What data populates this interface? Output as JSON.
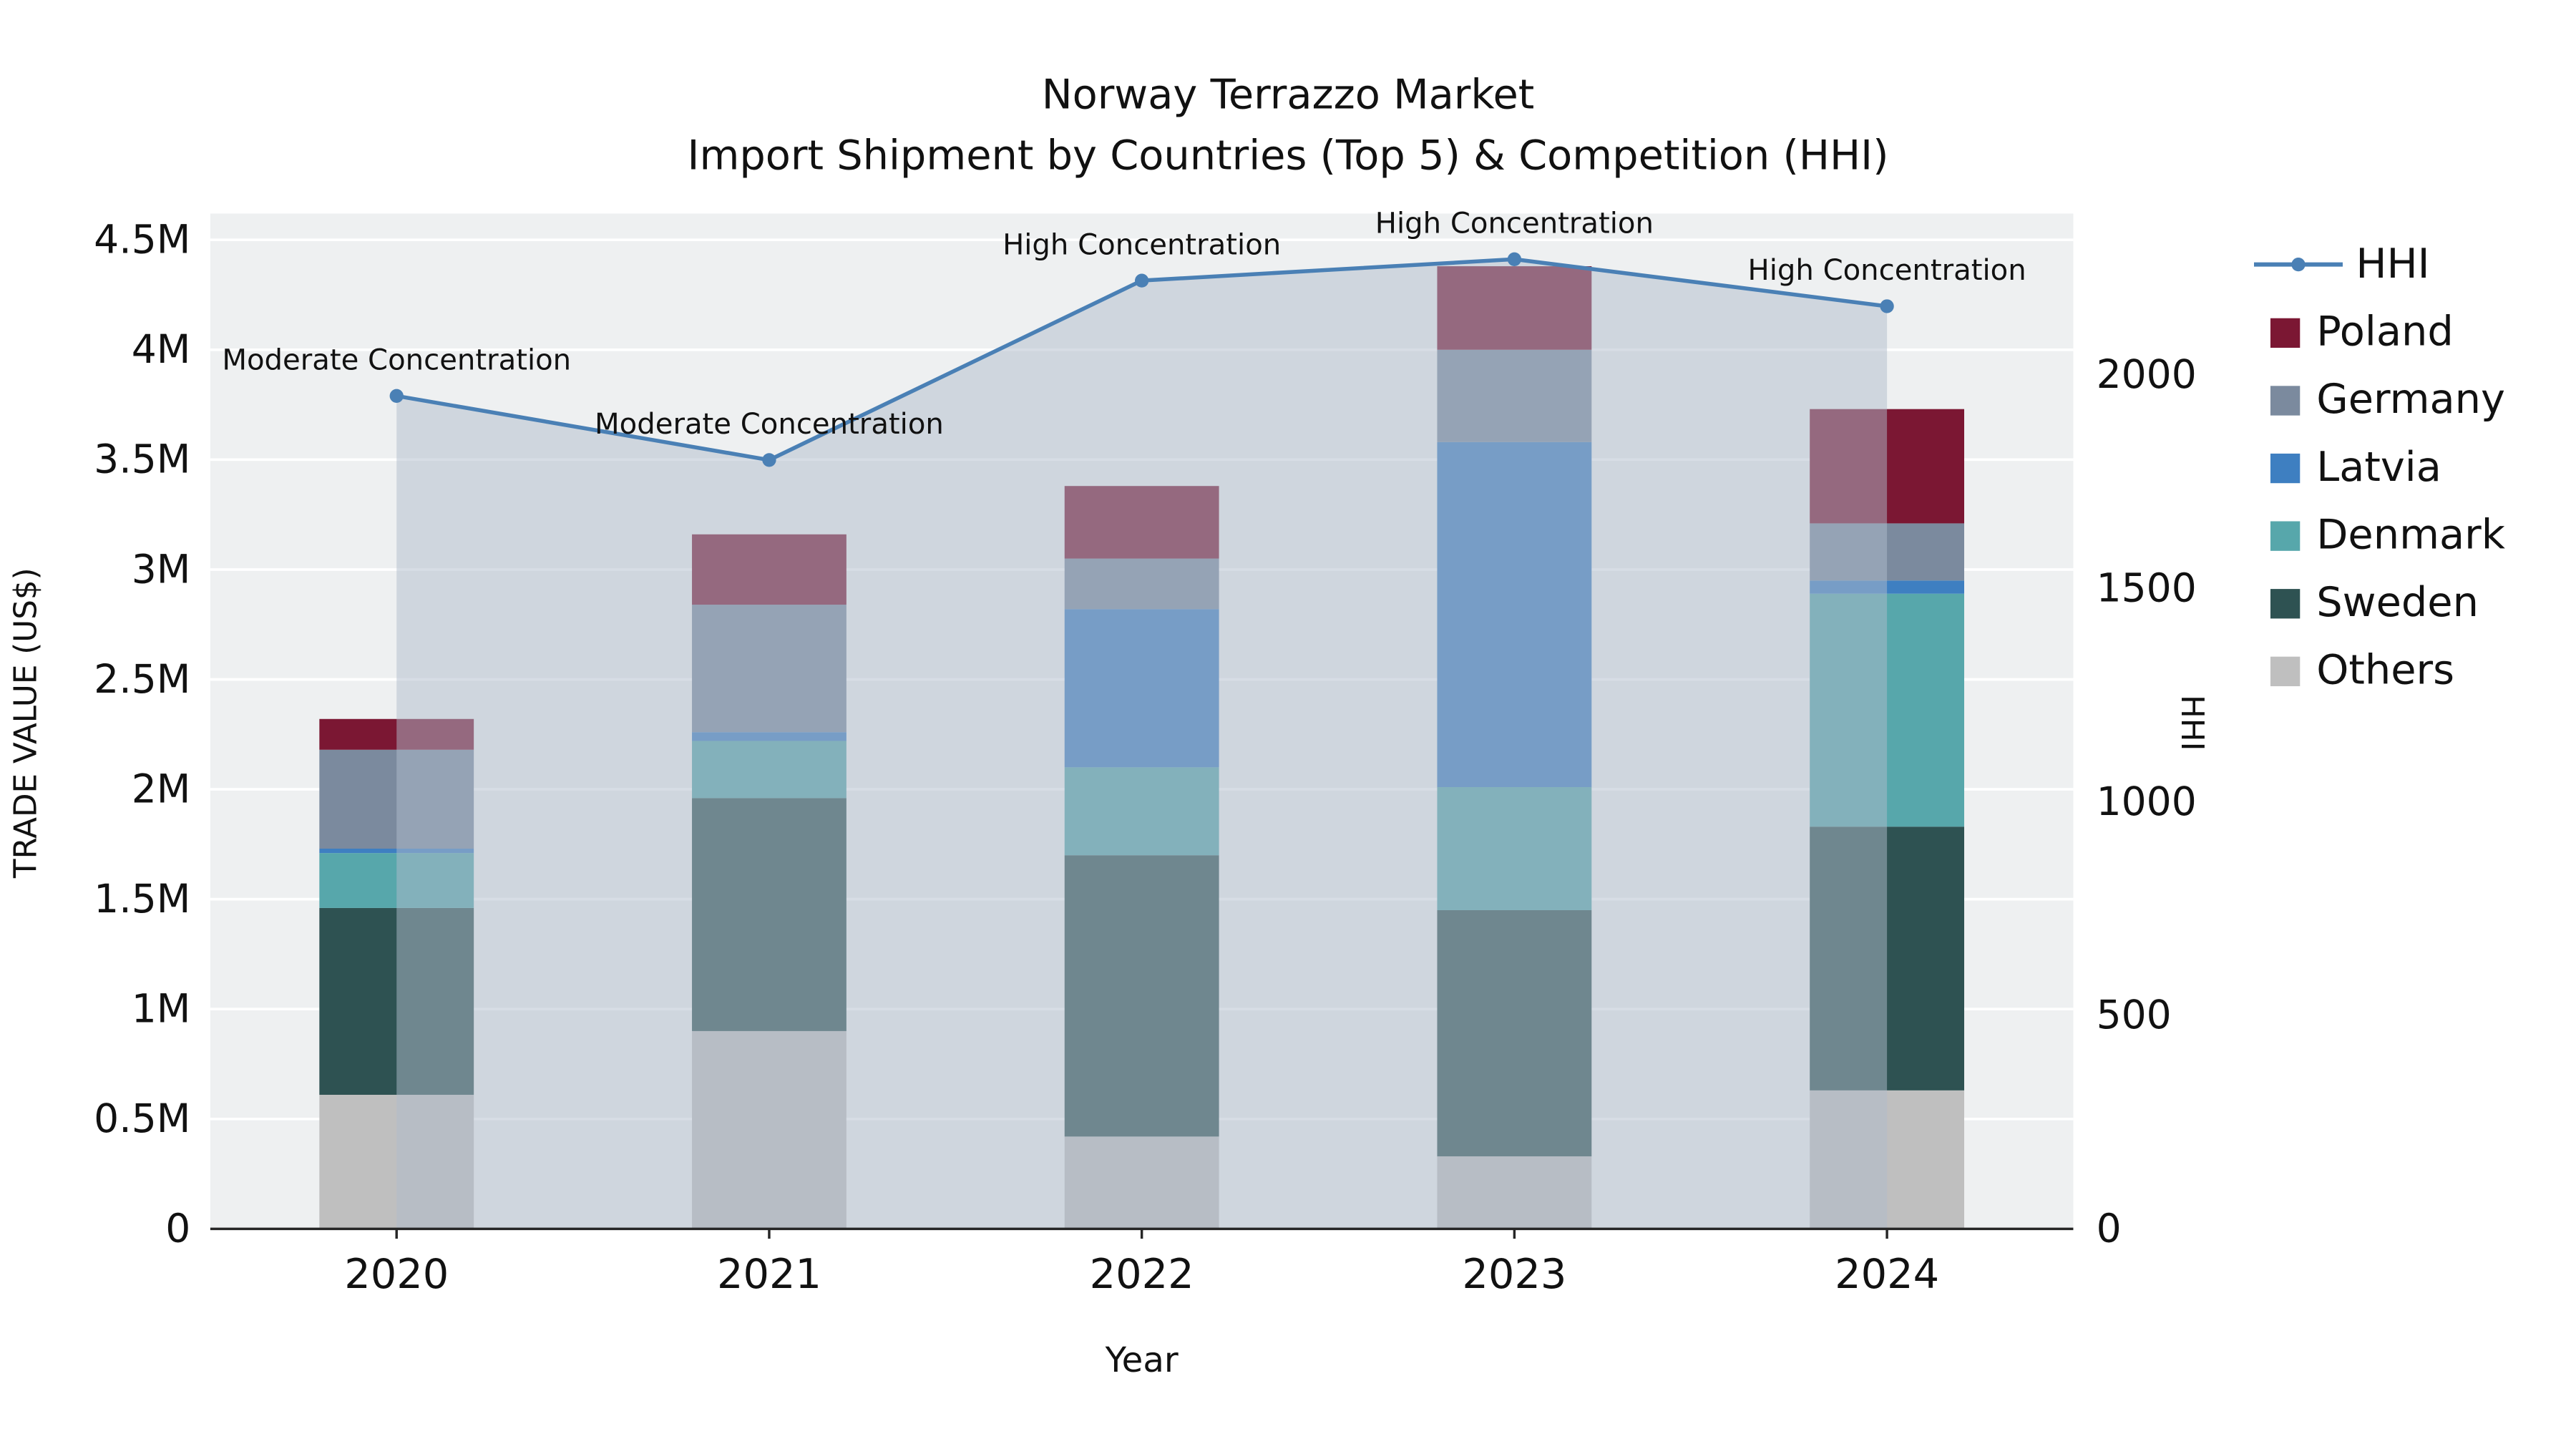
{
  "chart_data": {
    "type": "bar",
    "stacked": true,
    "title": "Norway Terrazzo Market",
    "subtitle": "Import Shipment by Countries (Top 5) & Competition (HHI)",
    "xlabel": "Year",
    "ylabel_left": "TRADE VALUE (US$)",
    "ylabel_right": "HHI",
    "categories": [
      "2020",
      "2021",
      "2022",
      "2023",
      "2024"
    ],
    "value_units": "M US$",
    "series": [
      {
        "name": "Poland",
        "color": "#7b1733",
        "values": [
          0.14,
          0.32,
          0.33,
          0.38,
          0.52
        ]
      },
      {
        "name": "Germany",
        "color": "#7b8a9e",
        "values": [
          0.45,
          0.58,
          0.23,
          0.42,
          0.26
        ]
      },
      {
        "name": "Latvia",
        "color": "#3e7fc1",
        "values": [
          0.02,
          0.04,
          0.72,
          1.57,
          0.06
        ]
      },
      {
        "name": "Denmark",
        "color": "#57a7ab",
        "values": [
          0.25,
          0.26,
          0.4,
          0.56,
          1.06
        ]
      },
      {
        "name": "Sweden",
        "color": "#2e5252",
        "values": [
          0.85,
          1.06,
          1.28,
          1.12,
          1.2
        ]
      },
      {
        "name": "Others",
        "color": "#bfbfbf",
        "values": [
          0.61,
          0.9,
          0.42,
          0.33,
          0.63
        ]
      }
    ],
    "stack_order_bottom_to_top": [
      "Others",
      "Sweden",
      "Denmark",
      "Latvia",
      "Germany",
      "Poland"
    ],
    "hhi_line": {
      "name": "HHI",
      "color": "#4a80b5",
      "fill_color": "rgba(176,187,204,0.5)",
      "values": [
        1950,
        1800,
        2220,
        2270,
        2160
      ]
    },
    "annotations": [
      "Moderate Concentration",
      "Moderate Concentration",
      "High Concentration",
      "High Concentration",
      "High Concentration"
    ],
    "axes": {
      "left": {
        "ticks": [
          "0",
          "0.5M",
          "1M",
          "1.5M",
          "2M",
          "2.5M",
          "3M",
          "3.5M",
          "4M",
          "4.5M"
        ],
        "tick_values": [
          0,
          0.5,
          1,
          1.5,
          2,
          2.5,
          3,
          3.5,
          4,
          4.5
        ],
        "range_max": 4.62
      },
      "right": {
        "ticks": [
          "0",
          "500",
          "1000",
          "1500",
          "2000"
        ],
        "tick_values": [
          0,
          500,
          1000,
          1500,
          2000
        ],
        "range_max": 2377
      }
    },
    "legend": [
      "HHI",
      "Poland",
      "Germany",
      "Latvia",
      "Denmark",
      "Sweden",
      "Others"
    ],
    "plot_background": "#eef0f1",
    "gridline_color": "#ffffff"
  }
}
